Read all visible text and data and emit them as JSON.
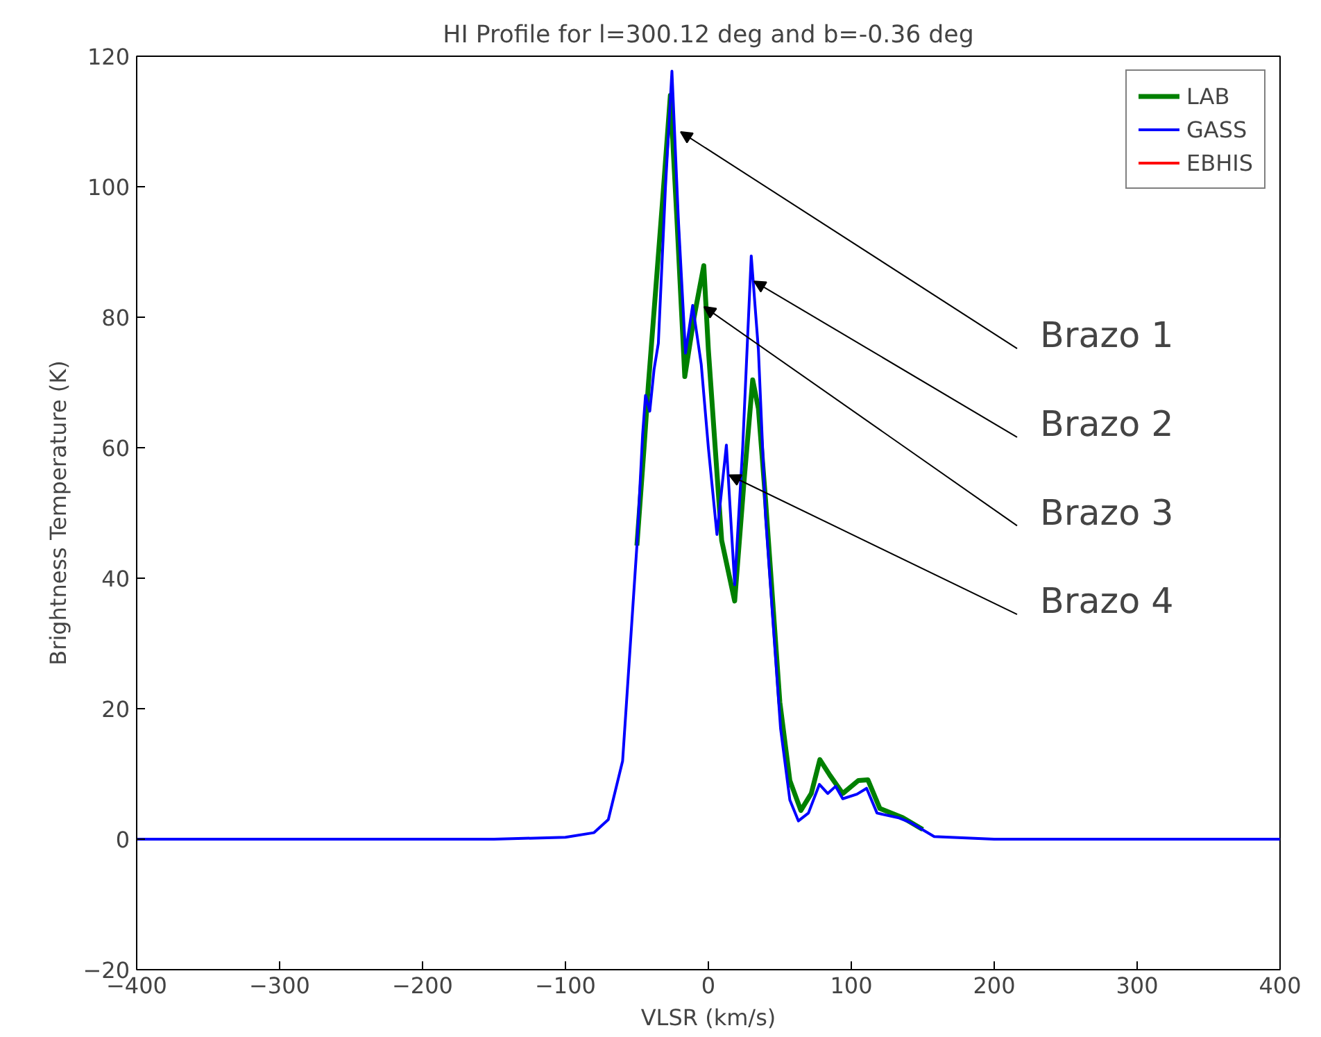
{
  "chart_data": {
    "type": "line",
    "title": "HI Profile for l=300.12 deg and b=-0.36 deg",
    "xlabel": "VLSR (km/s)",
    "ylabel": "Brightness Temperature (K)",
    "xlim": [
      -400,
      400
    ],
    "ylim": [
      -20,
      120
    ],
    "xticks": [
      {
        "value": -400,
        "label": "−400"
      },
      {
        "value": -300,
        "label": "−300"
      },
      {
        "value": -200,
        "label": "−200"
      },
      {
        "value": -100,
        "label": "−100"
      },
      0,
      100,
      200,
      300,
      400
    ],
    "yticks": [
      {
        "value": -20,
        "label": "−20"
      },
      0,
      20,
      40,
      60,
      80,
      100,
      120
    ],
    "grid": false,
    "legend": "top right",
    "marker": "none",
    "line_style": "solid",
    "series": [
      {
        "name": "LAB",
        "color": "#008000",
        "x": [
          -50,
          -45,
          -42,
          -32,
          -26.6,
          -22,
          -16.5,
          -10,
          -3.2,
          0,
          9.3,
          18.4,
          25,
          31,
          35,
          40,
          50,
          57,
          64.7,
          72,
          78,
          85,
          94,
          105,
          111.6,
          120,
          136,
          150
        ],
        "values": [
          45,
          60,
          69.6,
          98,
          114,
          95,
          70.9,
          80,
          87.9,
          75,
          45.8,
          36.5,
          55,
          70.4,
          66,
          52,
          21,
          9,
          4.4,
          7,
          12.2,
          9.8,
          7,
          9,
          9.1,
          4.7,
          3.3,
          1.5
        ]
      },
      {
        "name": "GASS",
        "color": "#0000ff",
        "x": [
          -400,
          -300,
          -200,
          -150,
          -100,
          -80,
          -70,
          -60,
          -50,
          -46,
          -44,
          -41,
          -38,
          -35,
          -30,
          -25.5,
          -21,
          -16,
          -11,
          -5,
          0,
          6,
          12.6,
          18.4,
          24,
          30,
          35,
          40,
          50.5,
          57,
          63,
          70,
          77.7,
          83.5,
          89,
          94,
          104,
          110.7,
          118,
          132.7,
          141,
          158,
          200,
          300,
          400
        ],
        "values": [
          0,
          0,
          0,
          0,
          0.3,
          1,
          3,
          12,
          45,
          62,
          68,
          65.6,
          72,
          76,
          100,
          117.7,
          95,
          74.5,
          81.8,
          72.8,
          60,
          46.7,
          60.4,
          39,
          60,
          89.4,
          75,
          49.5,
          17,
          6,
          2.8,
          4,
          8.4,
          7,
          8.1,
          6.2,
          6.9,
          7.8,
          4,
          3.3,
          2.6,
          0.4,
          0,
          0,
          0
        ]
      },
      {
        "name": "EBHIS",
        "color": "#ff0000"
      }
    ],
    "annotations": [
      {
        "text": "Brazo 1",
        "x": -19.4,
        "y": 108.4
      },
      {
        "text": "Brazo 2",
        "x": 32,
        "y": 85.5
      },
      {
        "text": "Brazo 3",
        "x": -3,
        "y": 81.6
      },
      {
        "text": "Brazo 4",
        "x": 14.6,
        "y": 55.8
      }
    ]
  }
}
